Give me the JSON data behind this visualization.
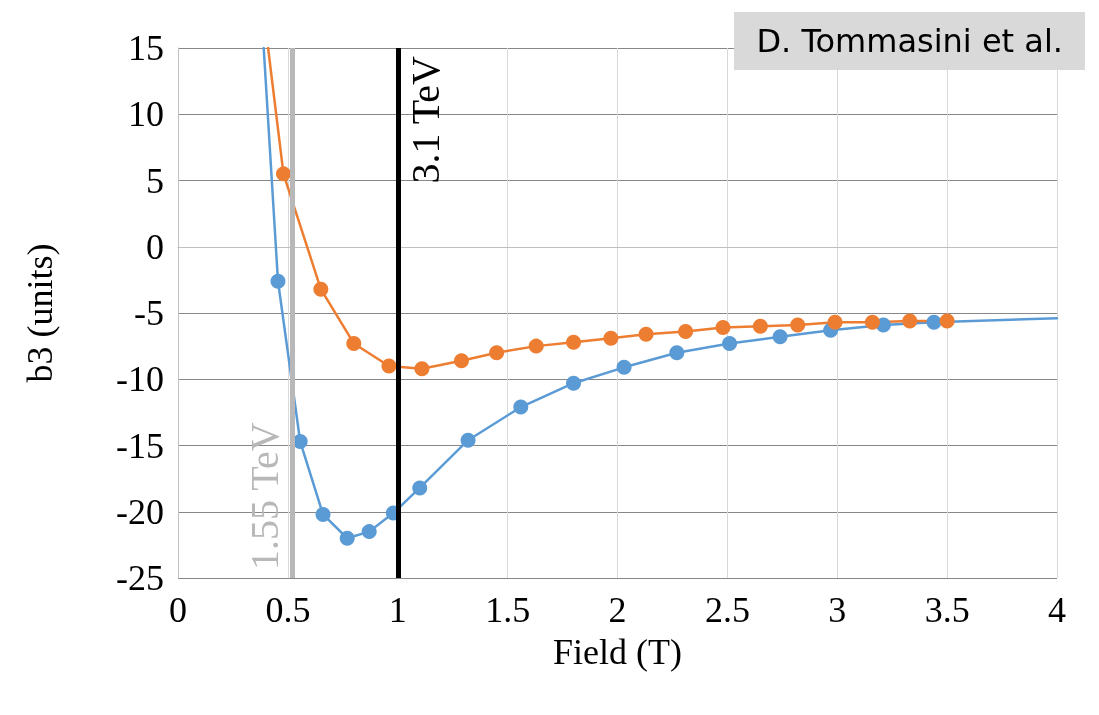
{
  "chart_data": {
    "type": "line",
    "xlabel": "Field (T)",
    "ylabel": "b3 (units)",
    "xlim": [
      0,
      4
    ],
    "xticks": [
      0,
      0.5,
      1,
      1.5,
      2,
      2.5,
      3,
      3.5,
      4
    ],
    "ylim": [
      -25,
      15
    ],
    "yticks": [
      -25,
      -20,
      -15,
      -10,
      -5,
      0,
      5,
      10,
      15
    ],
    "grid": true,
    "marker": "circle",
    "line_style": "solid",
    "series": [
      {
        "color": "#5b9bd5",
        "x": [
          0.39,
          0.455,
          0.556,
          0.66,
          0.77,
          0.87,
          0.98,
          1.1,
          1.32,
          1.56,
          1.8,
          2.03,
          2.27,
          2.51,
          2.74,
          2.97,
          3.21,
          3.44,
          4
        ],
        "values": [
          15,
          -2.6,
          -14.7,
          -20.2,
          -22,
          -21.5,
          -20.1,
          -18.2,
          -14.6,
          -12.1,
          -10.3,
          -9.1,
          -8,
          -7.3,
          -6.8,
          -6.3,
          -5.9,
          -5.7,
          -5.4
        ]
      },
      {
        "color": "#ed7d31",
        "x": [
          0.41,
          0.48,
          0.65,
          0.8,
          0.96,
          1.11,
          1.29,
          1.45,
          1.63,
          1.8,
          1.97,
          2.13,
          2.31,
          2.48,
          2.65,
          2.82,
          2.99,
          3.16,
          3.33,
          3.5
        ],
        "values": [
          15,
          5.5,
          -3.2,
          -7.3,
          -9,
          -9.2,
          -8.6,
          -8,
          -7.5,
          -7.2,
          -6.9,
          -6.6,
          -6.4,
          -6.1,
          -6,
          -5.9,
          -5.7,
          -5.7,
          -5.6,
          -5.6
        ]
      }
    ],
    "ref_lines": [
      {
        "axis": "x",
        "value": 0.52,
        "label": "1.55 TeV",
        "color": "#b8b8b8"
      },
      {
        "axis": "x",
        "value": 1,
        "label": "3.1 TeV",
        "color": "#000000"
      }
    ],
    "annotations": [
      "D. Tommasini et al."
    ]
  }
}
